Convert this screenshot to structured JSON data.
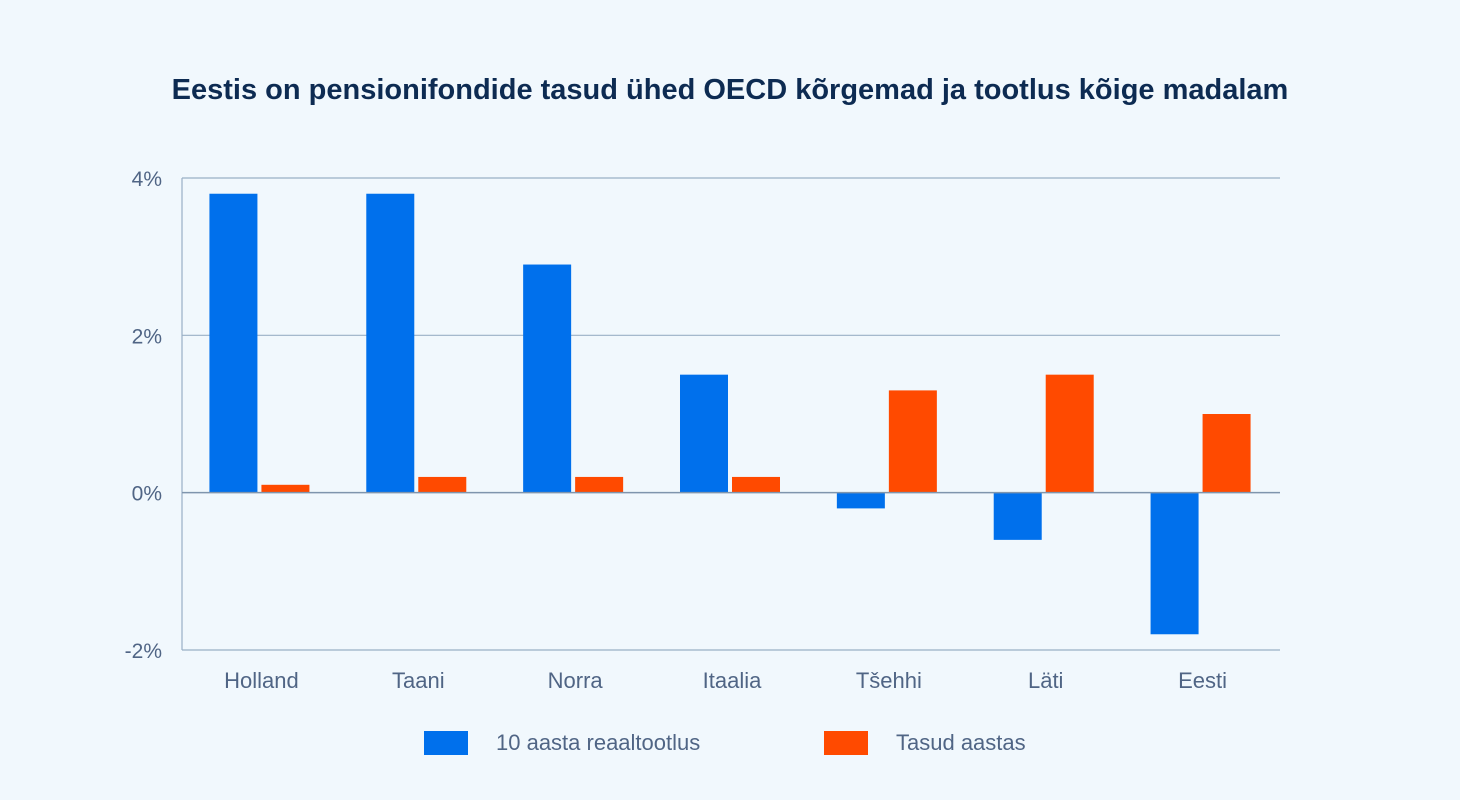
{
  "chart_data": {
    "type": "bar",
    "title": "Eestis on pensionifondide tasud ühed OECD kõrgemad ja tootlus kõige madalam",
    "categories": [
      "Holland",
      "Taani",
      "Norra",
      "Itaalia",
      "Tšehhi",
      "Läti",
      "Eesti"
    ],
    "series": [
      {
        "name": "10 aasta reaaltootlus",
        "color": "#0070ec",
        "values": [
          3.8,
          3.8,
          2.9,
          1.5,
          -0.2,
          -0.6,
          -1.8
        ]
      },
      {
        "name": "Tasud aastas",
        "color": "#ff4a00",
        "values": [
          0.1,
          0.2,
          0.2,
          0.2,
          1.3,
          1.5,
          1.0
        ]
      }
    ],
    "ylim": [
      -2,
      4
    ],
    "yticks": [
      -2,
      0,
      2,
      4
    ],
    "ytick_labels": [
      "-2%",
      "0%",
      "2%",
      "4%"
    ],
    "grid": true,
    "legend_position": "bottom",
    "colors": {
      "background": "#f1f8fd",
      "title": "#0d2b52",
      "text": "#506585",
      "grid": "#9ab0c6"
    }
  }
}
